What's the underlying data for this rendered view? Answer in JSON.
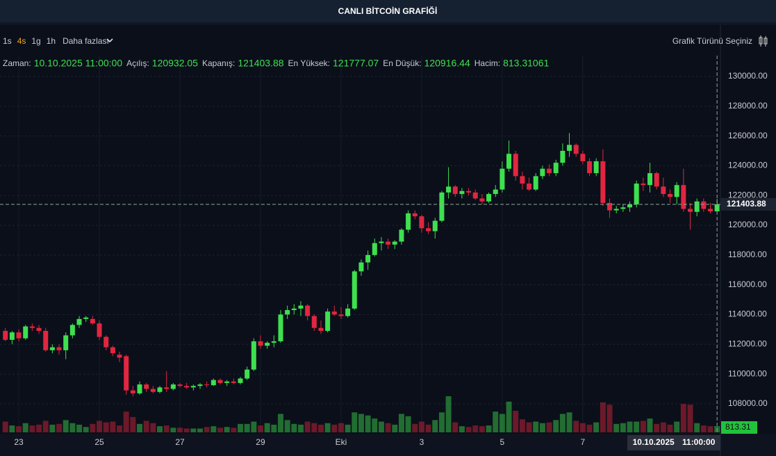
{
  "chart_data": {
    "type": "candlestick",
    "title": "CANLI BİTCOİN GRAFİĞİ",
    "intervals": [
      "1s",
      "4s",
      "1g",
      "1h"
    ],
    "selected_interval": "4s",
    "more_label": "Daha fazlası",
    "chart_type_label": "Grafik Türünü Seçiniz",
    "ohlc_info": [
      {
        "label": "Zaman:",
        "value": "10.10.2025 11:00:00"
      },
      {
        "label": "Açılış:",
        "value": 120932.05
      },
      {
        "label": "Kapanış:",
        "value": 121403.88
      },
      {
        "label": "En Yüksek:",
        "value": 121777.07
      },
      {
        "label": "En Düşük:",
        "value": 120916.44
      },
      {
        "label": "Hacim:",
        "value": 813.31061
      }
    ],
    "volume_badge": "813.31",
    "up_color": "#3ee04f",
    "down_color": "#e2263f",
    "grid": true,
    "xlim": [
      -0.8,
      106.5
    ],
    "xticks": [
      {
        "value": 2,
        "label": "23"
      },
      {
        "value": 14,
        "label": "25"
      },
      {
        "value": 26,
        "label": "27"
      },
      {
        "value": 38,
        "label": "29"
      },
      {
        "value": 50,
        "label": "Eki"
      },
      {
        "value": 62,
        "label": "3"
      },
      {
        "value": 74,
        "label": "5"
      },
      {
        "value": 86,
        "label": "7"
      }
    ],
    "ylim": [
      106080,
      131400
    ],
    "yticks": [
      {
        "value": 108000,
        "label": "108000.00"
      },
      {
        "value": 110000,
        "label": "110000.00"
      },
      {
        "value": 112000,
        "label": "112000.00"
      },
      {
        "value": 114000,
        "label": "114000.00"
      },
      {
        "value": 116000,
        "label": "116000.00"
      },
      {
        "value": 118000,
        "label": "118000.00"
      },
      {
        "value": 120000,
        "label": "120000.00"
      },
      {
        "value": 122000,
        "label": "122000.00"
      },
      {
        "value": 124000,
        "label": "124000.00"
      },
      {
        "value": 126000,
        "label": "126000.00"
      },
      {
        "value": 128000,
        "label": "128000.00"
      },
      {
        "value": 130000,
        "label": "130000.00"
      }
    ],
    "open": [
      112900,
      112300,
      112800,
      112400,
      113200,
      113100,
      112900,
      111600,
      111800,
      111600,
      112600,
      113300,
      113700,
      113700,
      113400,
      112500,
      111800,
      111300,
      111200,
      108900,
      108700,
      109300,
      109000,
      108800,
      109100,
      109000,
      109300,
      109200,
      109100,
      109200,
      109300,
      109250,
      109600,
      109400,
      109500,
      109400,
      109700,
      110300,
      112200,
      111900,
      112100,
      112200,
      114000,
      114300,
      114400,
      114600,
      113900,
      113100,
      112900,
      114200,
      114000,
      113900,
      114400,
      116900,
      117500,
      118000,
      118800,
      118900,
      118700,
      118900,
      119700,
      120800,
      120600,
      119800,
      119600,
      120300,
      122200,
      122600,
      122100,
      122300,
      122200,
      121800,
      121600,
      122100,
      122400,
      123800,
      124800,
      123300,
      122800,
      122400,
      123300,
      123800,
      123500,
      124200,
      125000,
      125400,
      124800,
      124300,
      123500,
      124300,
      121500,
      121000,
      121100,
      121200,
      121400,
      122800,
      122700,
      123500,
      122600,
      122100,
      121900,
      122700,
      121100,
      120900,
      121600,
      121100,
      120932.05
    ],
    "high": [
      113100,
      112900,
      113000,
      113300,
      113400,
      113300,
      113100,
      112000,
      112000,
      112800,
      113400,
      113900,
      113900,
      113900,
      113600,
      112600,
      111900,
      111500,
      111300,
      109200,
      109500,
      109400,
      109200,
      109200,
      110200,
      109400,
      109400,
      109400,
      109300,
      109400,
      109500,
      109700,
      109700,
      109600,
      109700,
      109800,
      110500,
      112400,
      112600,
      112200,
      112600,
      114300,
      114600,
      114700,
      114900,
      114700,
      114000,
      113600,
      114400,
      114600,
      114500,
      114700,
      117000,
      117700,
      118300,
      119100,
      119200,
      119100,
      119000,
      119800,
      121000,
      121000,
      120700,
      120200,
      120500,
      122300,
      123900,
      122700,
      122500,
      122500,
      122400,
      122100,
      122200,
      122700,
      124300,
      125700,
      125000,
      123600,
      123200,
      123500,
      124000,
      124100,
      124400,
      125500,
      126200,
      125500,
      125000,
      124500,
      124500,
      125100,
      121800,
      121300,
      121400,
      121600,
      123000,
      123200,
      124200,
      123600,
      123200,
      122400,
      122900,
      123800,
      121500,
      121800,
      121800,
      121500,
      121777.07
    ],
    "low": [
      112200,
      112000,
      112200,
      112300,
      112900,
      112700,
      111500,
      111400,
      111300,
      111000,
      112400,
      113100,
      113500,
      113300,
      112300,
      111600,
      111200,
      110800,
      108600,
      108500,
      108600,
      108800,
      108700,
      108700,
      108800,
      108900,
      109100,
      109000,
      108900,
      109000,
      109100,
      109200,
      109300,
      109200,
      109300,
      109300,
      109600,
      110200,
      111700,
      111700,
      111800,
      112100,
      113700,
      114000,
      113900,
      113600,
      112900,
      112700,
      112800,
      113900,
      113700,
      113800,
      114300,
      116600,
      117000,
      117900,
      118300,
      118400,
      118400,
      118700,
      119500,
      120400,
      119500,
      119400,
      119100,
      120200,
      121800,
      121900,
      121800,
      122000,
      121700,
      121400,
      121500,
      121900,
      122200,
      123600,
      123000,
      122400,
      122300,
      122300,
      123100,
      123300,
      123300,
      124000,
      124600,
      124600,
      124100,
      123300,
      123300,
      121300,
      120500,
      120800,
      120900,
      120900,
      121200,
      122300,
      122200,
      122400,
      121900,
      121500,
      121400,
      120900,
      119700,
      120600,
      120900,
      120800,
      120916.44
    ],
    "close": [
      112300,
      112800,
      112400,
      113200,
      113100,
      112900,
      111600,
      111800,
      111600,
      112600,
      113300,
      113700,
      113800,
      113400,
      112500,
      111800,
      111400,
      111100,
      108900,
      108700,
      109300,
      109000,
      108800,
      109100,
      109000,
      109300,
      109200,
      109100,
      109200,
      109300,
      109250,
      109600,
      109400,
      109500,
      109400,
      109700,
      110300,
      112200,
      111900,
      112100,
      112200,
      114000,
      114300,
      114400,
      114600,
      113900,
      113100,
      112900,
      114200,
      114000,
      113900,
      114400,
      116900,
      117500,
      118000,
      118800,
      118900,
      118700,
      118900,
      119700,
      120800,
      120600,
      119800,
      119600,
      120300,
      122200,
      122600,
      122100,
      122300,
      122200,
      121800,
      121600,
      122100,
      122400,
      123800,
      124800,
      123300,
      122800,
      122400,
      123300,
      123800,
      123500,
      124200,
      125000,
      125400,
      124800,
      124300,
      123500,
      124300,
      121500,
      121000,
      121100,
      121200,
      121400,
      122800,
      122700,
      123500,
      122600,
      122100,
      121900,
      122700,
      121100,
      120900,
      121600,
      121100,
      120932.05,
      121403.88
    ],
    "volume": [
      1400,
      900,
      800,
      1200,
      900,
      1000,
      1500,
      1000,
      1100,
      1600,
      1200,
      1000,
      700,
      1100,
      1500,
      1300,
      1400,
      900,
      2700,
      2000,
      1100,
      1500,
      1200,
      800,
      900,
      600,
      600,
      500,
      500,
      500,
      700,
      800,
      600,
      700,
      600,
      1100,
      1100,
      1400,
      900,
      1200,
      1000,
      2400,
      1600,
      1100,
      1000,
      1400,
      1200,
      1000,
      1200,
      1000,
      1200,
      1000,
      2600,
      2400,
      2200,
      1800,
      1400,
      1200,
      1000,
      2400,
      2100,
      1100,
      1400,
      1000,
      1600,
      2600,
      4700,
      1300,
      800,
      700,
      900,
      800,
      900,
      2700,
      2400,
      4000,
      2800,
      1700,
      1300,
      1400,
      1200,
      1300,
      1600,
      2400,
      2600,
      1500,
      1200,
      1000,
      1300,
      3900,
      3600,
      1100,
      1200,
      1400,
      1400,
      1500,
      1800,
      1100,
      1300,
      1000,
      1400,
      3700,
      3600,
      1200,
      900,
      800,
      813.31061
    ]
  }
}
